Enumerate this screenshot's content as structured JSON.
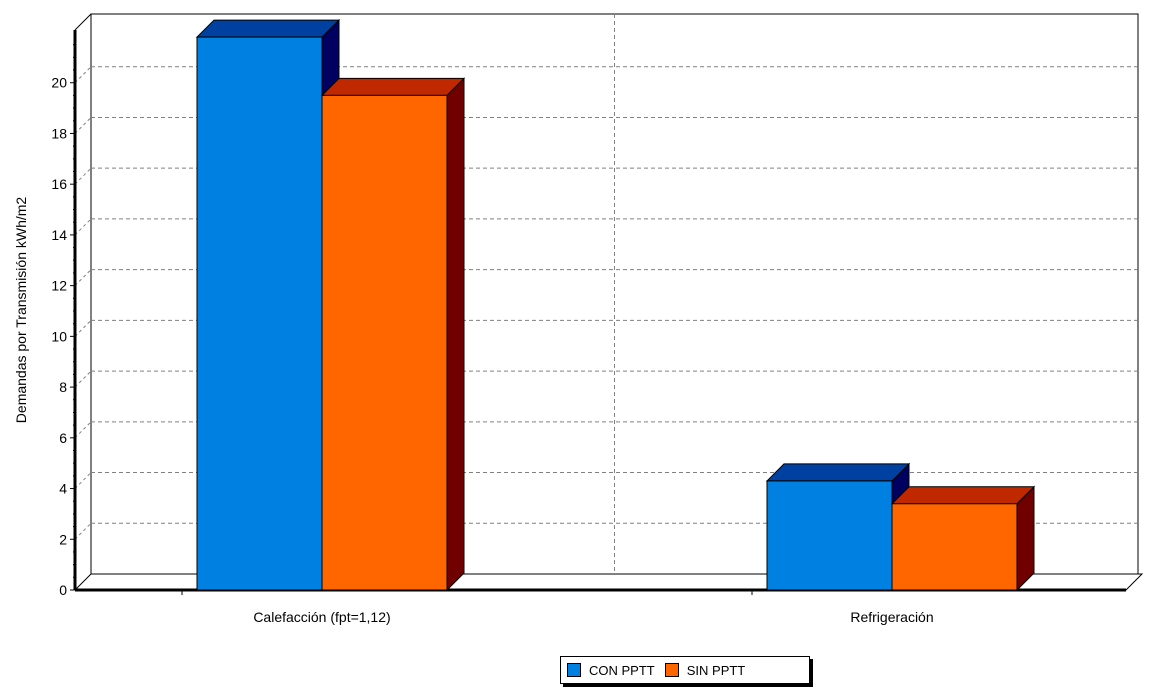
{
  "chart_data": {
    "type": "bar",
    "title": "",
    "xlabel": "",
    "ylabel": "Demandas por Transmisión kWh/m2",
    "categories": [
      "Calefacción (fpt=1,12)",
      "Refrigeración"
    ],
    "series": [
      {
        "name": "CON PPTT",
        "values": [
          21.8,
          4.3
        ],
        "color": "#0080e0",
        "top_color": "#0040a0",
        "side_color": "#000060"
      },
      {
        "name": "SIN PPTT",
        "values": [
          19.5,
          3.4
        ],
        "color": "#ff6600",
        "top_color": "#c02800",
        "side_color": "#700000"
      }
    ],
    "ylim": [
      0,
      22
    ],
    "yticks": [
      0,
      2,
      4,
      6,
      8,
      10,
      12,
      14,
      16,
      18,
      20
    ],
    "grid": true,
    "grid_style": "dashed",
    "three_d": true,
    "legend": "bottom-center"
  }
}
